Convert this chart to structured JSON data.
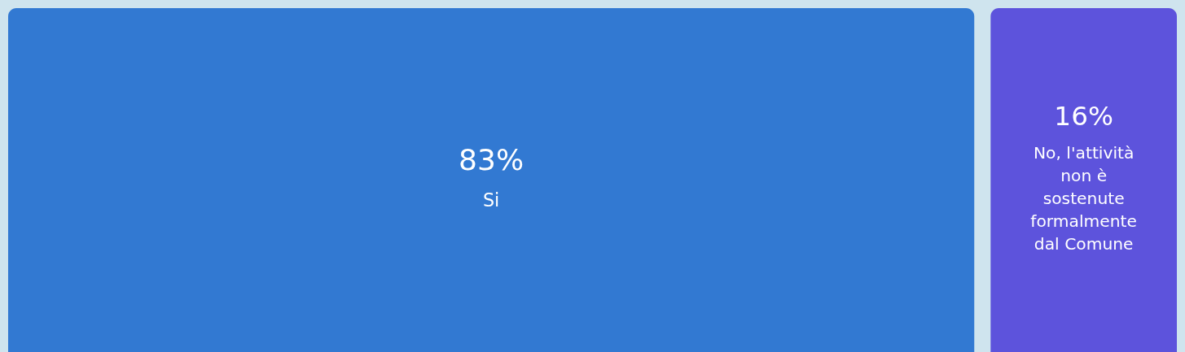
{
  "chart_data": {
    "type": "other",
    "categories": [
      "Si",
      "No, l'attività non è sostenute formalmente dal Comune"
    ],
    "values": [
      83,
      16
    ],
    "value_labels": [
      "83%",
      "16%"
    ],
    "colors": [
      "#3279d2",
      "#5d53dc"
    ]
  }
}
